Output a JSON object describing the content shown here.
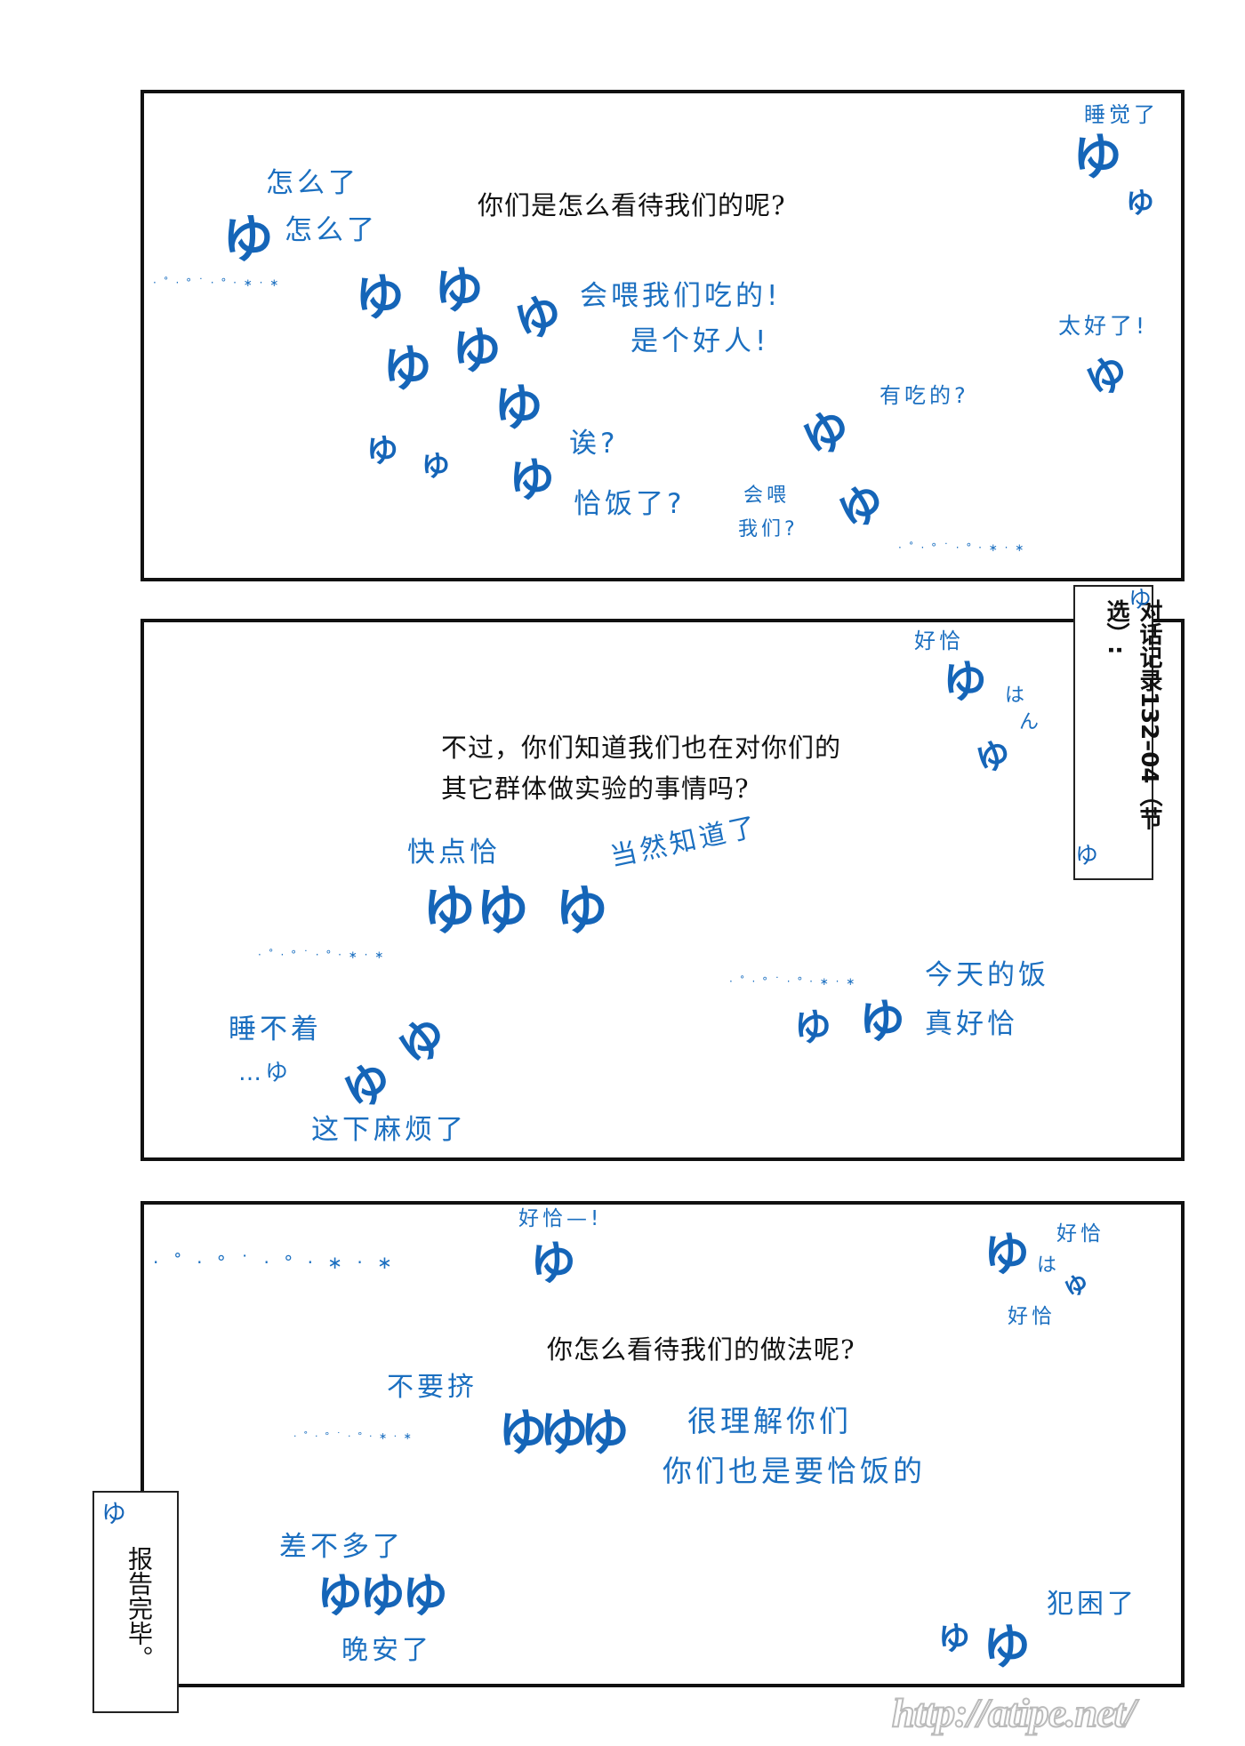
{
  "accent_color": "#1b6fc0",
  "panel1": {
    "question": "你们是怎么看待我们的呢?",
    "lines": [
      "怎么了",
      "怎么了",
      "睡觉了",
      "会喂我们吃的!",
      "是个好人!",
      "太好了!",
      "有吃的?",
      "诶?",
      "恰饭了?",
      "会喂",
      "我们?"
    ],
    "yu": "ゆ"
  },
  "panel2": {
    "question_line1": "不过，你们知道我们也在对你们的",
    "question_line2": "其它群体做实验的事情吗?",
    "lines": [
      "好恰",
      "は",
      "ん",
      "快点恰",
      "当然知道了",
      "睡不着",
      "…ゆ",
      "这下麻烦了",
      "今天的饭",
      "真好恰"
    ],
    "yu": "ゆ",
    "yuyu": "ゆゆ"
  },
  "panel3": {
    "question": "你怎么看待我们的做法呢?",
    "lines": [
      "好恰—!",
      "好恰",
      "は",
      "好恰",
      "不要挤",
      "很理解你们",
      "你们也是要恰饭的",
      "差不多了",
      "晚安了",
      "犯困了"
    ],
    "yu": "ゆ",
    "yuyuyu": "ゆゆゆ",
    "sparkles": "· ˚ · ° ˙ · ° · ∗ · ∗"
  },
  "caption_top": {
    "text": "对话记录132–04（节选）:",
    "yu": "ゆ"
  },
  "caption_bottom": {
    "text": "报告完毕。",
    "yu": "ゆ"
  },
  "watermark": "http://atipe.net/"
}
